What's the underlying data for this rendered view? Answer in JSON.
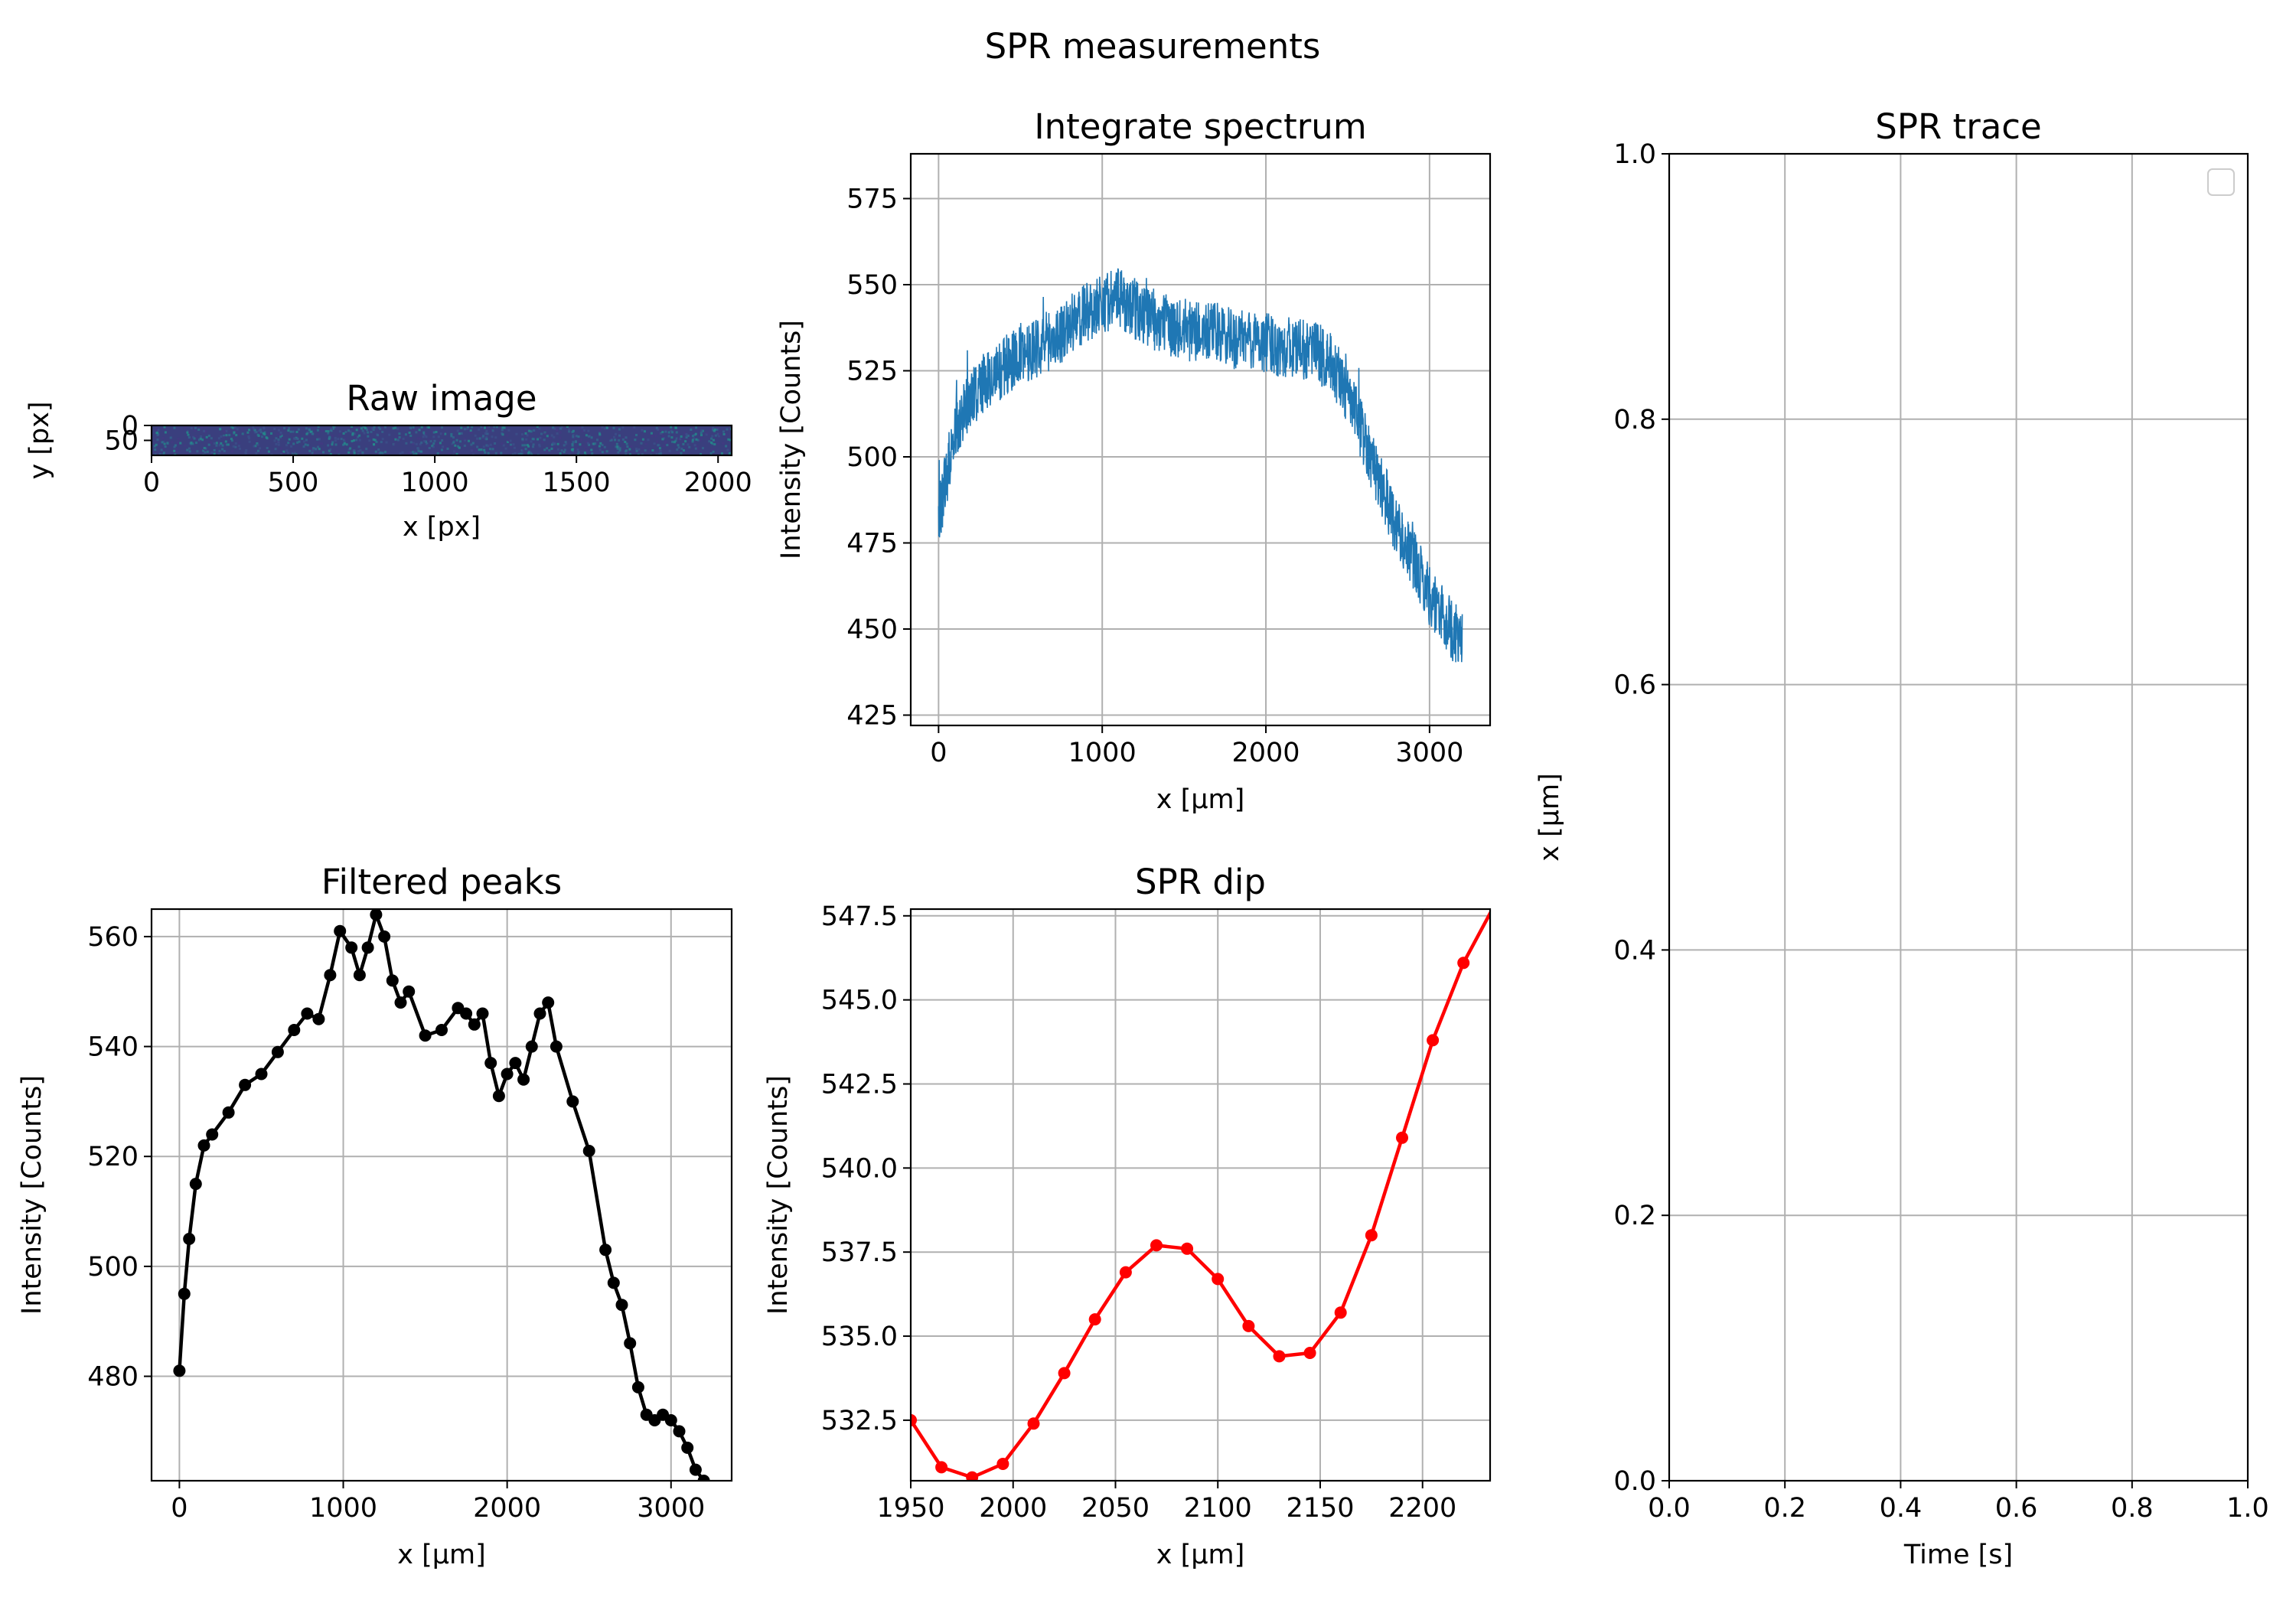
{
  "figure_title": "SPR measurements",
  "colors": {
    "spectrum": "#1f77b4",
    "peaks": "#000000",
    "dip": "#ff0000",
    "grid": "#b0b0b0"
  },
  "chart_data": [
    {
      "id": "raw",
      "type": "heatmap",
      "title": "Raw image",
      "xlabel": "x [px]",
      "ylabel": "y [px]",
      "xlim": [
        0,
        2048
      ],
      "ylim": [
        100,
        0
      ],
      "xticks": [
        "0",
        "500",
        "1000",
        "1500",
        "2000"
      ],
      "yticks": [
        "0",
        "50"
      ],
      "grid": false,
      "colormap": "viridis (dark blue noise)"
    },
    {
      "id": "spectrum",
      "type": "line",
      "title": "Integrate spectrum",
      "xlabel": "x [$\\mu$m]",
      "ylabel": "Intensity [Counts]",
      "xlim": [
        -170,
        3370
      ],
      "ylim": [
        422,
        588
      ],
      "xticks": [
        "0",
        "1000",
        "2000",
        "3000"
      ],
      "yticks": [
        "425",
        "450",
        "475",
        "500",
        "525",
        "550",
        "575"
      ],
      "grid": true,
      "series": [
        {
          "color": "#1f77b4",
          "envelope": {
            "x": [
              0,
              100,
              200,
              300,
              400,
              500,
              600,
              700,
              800,
              900,
              1000,
              1100,
              1200,
              1300,
              1400,
              1500,
              1600,
              1700,
              1800,
              1900,
              2000,
              2100,
              2200,
              2300,
              2400,
              2500,
              2600,
              2700,
              2800,
              2900,
              3000,
              3100,
              3200
            ],
            "y": [
              482,
              508,
              518,
              522,
              526,
              530,
              532,
              534,
              538,
              542,
              545,
              546,
              543,
              540,
              538,
              537,
              536,
              536,
              534,
              534,
              533,
              532,
              531,
              531,
              527,
              518,
              506,
              492,
              480,
              470,
              460,
              452,
              446
            ],
            "noise": 9
          }
        }
      ]
    },
    {
      "id": "trace",
      "type": "line",
      "title": "SPR trace",
      "xlabel": "Time [s]",
      "ylabel": "x [$\\mu$m]",
      "xlim": [
        0,
        1
      ],
      "ylim": [
        0,
        1
      ],
      "xticks": [
        "0.0",
        "0.2",
        "0.4",
        "0.6",
        "0.8",
        "1.0"
      ],
      "yticks": [
        "0.0",
        "0.2",
        "0.4",
        "0.6",
        "0.8",
        "1.0"
      ],
      "grid": true,
      "legend": "top-right (empty)",
      "series": []
    },
    {
      "id": "peaks",
      "type": "line",
      "title": "Filtered peaks",
      "xlabel": "x [$\\mu$m]",
      "ylabel": "Intensity [Counts]",
      "xlim": [
        -170,
        3370
      ],
      "ylim": [
        461,
        565
      ],
      "xticks": [
        "0",
        "1000",
        "2000",
        "3000"
      ],
      "yticks": [
        "480",
        "500",
        "520",
        "540",
        "560"
      ],
      "grid": true,
      "series": [
        {
          "color": "#000000",
          "marker": "o",
          "x": [
            0,
            30,
            60,
            100,
            150,
            200,
            300,
            400,
            500,
            600,
            700,
            780,
            850,
            920,
            980,
            1050,
            1100,
            1150,
            1200,
            1250,
            1300,
            1350,
            1400,
            1500,
            1600,
            1700,
            1750,
            1800,
            1850,
            1900,
            1950,
            2000,
            2050,
            2100,
            2150,
            2200,
            2250,
            2300,
            2400,
            2500,
            2600,
            2650,
            2700,
            2750,
            2800,
            2850,
            2900,
            2950,
            3000,
            3050,
            3100,
            3150,
            3200
          ],
          "y": [
            481,
            495,
            505,
            515,
            522,
            524,
            528,
            533,
            535,
            539,
            543,
            546,
            545,
            553,
            561,
            558,
            553,
            558,
            564,
            560,
            552,
            548,
            550,
            542,
            543,
            547,
            546,
            544,
            546,
            537,
            531,
            535,
            537,
            534,
            540,
            546,
            548,
            540,
            530,
            521,
            503,
            497,
            493,
            486,
            478,
            473,
            472,
            473,
            472,
            470,
            467,
            463,
            461
          ]
        }
      ]
    },
    {
      "id": "dip",
      "type": "line",
      "title": "SPR dip",
      "xlabel": "x [$\\mu$m]",
      "ylabel": "Intensity [Counts]",
      "xlim": [
        1950,
        2233
      ],
      "ylim": [
        530.7,
        547.7
      ],
      "xticks": [
        "1950",
        "2000",
        "2050",
        "2100",
        "2150",
        "2200"
      ],
      "yticks": [
        "532.5",
        "535.0",
        "537.5",
        "540.0",
        "542.5",
        "545.0",
        "547.5"
      ],
      "grid": true,
      "series": [
        {
          "color": "#ff0000",
          "marker": "o",
          "x": [
            1950,
            1965,
            1980,
            1995,
            2010,
            2025,
            2040,
            2055,
            2070,
            2085,
            2100,
            2115,
            2130,
            2145,
            2160,
            2175,
            2190,
            2205,
            2220,
            2235
          ],
          "y": [
            532.5,
            531.1,
            530.8,
            531.2,
            532.4,
            533.9,
            535.5,
            536.9,
            537.7,
            537.6,
            536.7,
            535.3,
            534.4,
            534.5,
            535.7,
            538.0,
            540.9,
            543.8,
            546.1,
            547.8
          ]
        }
      ]
    }
  ]
}
